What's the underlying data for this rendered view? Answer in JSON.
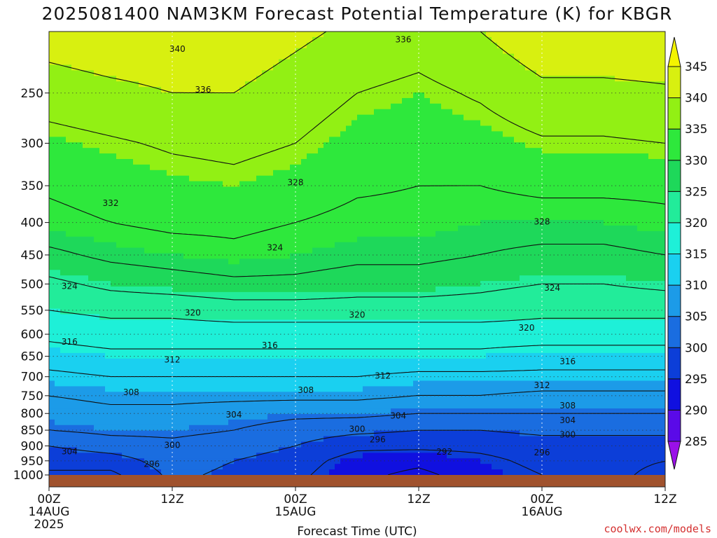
{
  "chart_data": {
    "type": "contour",
    "title": "2025081400 NAM3KM Forecast Potential Temperature (K) for KBGR",
    "xlabel": "Forecast Time (UTC)",
    "ylabel": "",
    "credit": "coolwx.com/models",
    "x_hours": [
      0,
      12,
      24,
      36,
      48,
      60
    ],
    "x_ticks": [
      {
        "hour": 0,
        "label": "00Z",
        "date": "14AUG",
        "year": "2025"
      },
      {
        "hour": 12,
        "label": "12Z",
        "date": "",
        "year": ""
      },
      {
        "hour": 24,
        "label": "00Z",
        "date": "15AUG",
        "year": ""
      },
      {
        "hour": 36,
        "label": "12Z",
        "date": "",
        "year": ""
      },
      {
        "hour": 48,
        "label": "00Z",
        "date": "16AUG",
        "year": ""
      },
      {
        "hour": 60,
        "label": "12Z",
        "date": "",
        "year": ""
      }
    ],
    "x_range_hours": [
      0,
      60
    ],
    "y_scale": "log-pressure",
    "y_range_hPa": [
      1000,
      200
    ],
    "y_ticks_hPa": [
      250,
      300,
      350,
      400,
      450,
      500,
      550,
      600,
      650,
      700,
      750,
      800,
      850,
      900,
      950,
      1000
    ],
    "grid": true,
    "colorbar": {
      "levels": [
        285,
        290,
        295,
        300,
        305,
        310,
        315,
        320,
        325,
        330,
        335,
        340,
        345
      ],
      "colors": [
        "#9a10e8",
        "#5a0ae8",
        "#1010e0",
        "#0c3ed8",
        "#1a6de0",
        "#1c9be8",
        "#1ad0f0",
        "#1ef0d8",
        "#22ec9a",
        "#1ed85a",
        "#2ee83c",
        "#92f014",
        "#d8f010",
        "#f4f400"
      ]
    },
    "ground_color": "#a0522d",
    "contour_interval_K": 4,
    "profiles_pressure_hPa": [
      1000,
      950,
      900,
      850,
      800,
      750,
      700,
      650,
      600,
      550,
      500,
      450,
      400,
      350,
      300,
      250,
      200
    ],
    "profiles": [
      {
        "hour": 0,
        "theta_K": [
          295.5,
          297,
          300,
          304,
          306,
          308,
          311,
          314,
          317,
          320,
          323,
          327,
          331,
          332.5,
          334.5,
          338,
          342
        ]
      },
      {
        "hour": 6,
        "theta_K": [
          295,
          298,
          302,
          305,
          307,
          309,
          312,
          315,
          318,
          321,
          325,
          329,
          332,
          333.5,
          335.5,
          339,
          343
        ]
      },
      {
        "hour": 12,
        "theta_K": [
          301,
          302,
          303,
          305,
          307,
          309,
          312,
          315,
          318,
          321,
          326,
          330,
          333,
          334.5,
          336.5,
          340,
          343
        ]
      },
      {
        "hour": 18,
        "theta_K": [
          299,
          300,
          302,
          304,
          306,
          309,
          312,
          315,
          318,
          322,
          327,
          331,
          333,
          335,
          337,
          340,
          343
        ]
      },
      {
        "hour": 24,
        "theta_K": [
          297,
          298,
          300,
          302,
          305,
          309,
          312,
          315,
          318,
          322,
          327,
          330,
          332,
          334,
          336,
          338,
          341
        ]
      },
      {
        "hour": 30,
        "theta_K": [
          293,
          294,
          297,
          301,
          305,
          309,
          312,
          315,
          318,
          322,
          326,
          329,
          331,
          332.5,
          334,
          336,
          339
        ]
      },
      {
        "hour": 36,
        "theta_K": [
          291,
          293,
          297,
          300,
          304,
          308,
          311,
          315,
          318,
          322,
          326,
          329,
          331,
          332,
          333.5,
          335,
          338
        ]
      },
      {
        "hour": 42,
        "theta_K": [
          294,
          295,
          297,
          300,
          304,
          308,
          311,
          315,
          318,
          322,
          325,
          328,
          330,
          332,
          334,
          336.5,
          340
        ]
      },
      {
        "hour": 48,
        "theta_K": [
          296,
          297,
          298,
          301,
          304,
          307,
          311,
          314,
          318,
          321,
          324,
          327,
          330,
          333,
          335.5,
          339,
          343
        ]
      },
      {
        "hour": 54,
        "theta_K": [
          297,
          297,
          298,
          301,
          304,
          307,
          311,
          314,
          318,
          321,
          324,
          327,
          330,
          333,
          335.5,
          339,
          343
        ]
      },
      {
        "hour": 60,
        "theta_K": [
          295,
          296,
          298,
          301,
          304,
          307,
          311,
          314,
          318,
          321,
          325,
          328,
          331,
          333,
          336,
          339.5,
          343
        ]
      }
    ],
    "contour_labels": [
      {
        "text": "340",
        "hour": 12.5,
        "hPa": 213
      },
      {
        "text": "336",
        "hour": 34.5,
        "hPa": 206
      },
      {
        "text": "336",
        "hour": 15.0,
        "hPa": 247
      },
      {
        "text": "332",
        "hour": 6.0,
        "hPa": 373
      },
      {
        "text": "328",
        "hour": 24.0,
        "hPa": 346
      },
      {
        "text": "328",
        "hour": 48.0,
        "hPa": 399
      },
      {
        "text": "324",
        "hour": 22.0,
        "hPa": 438
      },
      {
        "text": "324",
        "hour": 2.0,
        "hPa": 504
      },
      {
        "text": "324",
        "hour": 49.0,
        "hPa": 507
      },
      {
        "text": "320",
        "hour": 14.0,
        "hPa": 555
      },
      {
        "text": "320",
        "hour": 30.0,
        "hPa": 559
      },
      {
        "text": "320",
        "hour": 46.5,
        "hPa": 586
      },
      {
        "text": "316",
        "hour": 2.0,
        "hPa": 617
      },
      {
        "text": "316",
        "hour": 21.5,
        "hPa": 625
      },
      {
        "text": "316",
        "hour": 50.5,
        "hPa": 662
      },
      {
        "text": "312",
        "hour": 12.0,
        "hPa": 658
      },
      {
        "text": "312",
        "hour": 32.5,
        "hPa": 698
      },
      {
        "text": "312",
        "hour": 48.0,
        "hPa": 722
      },
      {
        "text": "308",
        "hour": 8.0,
        "hPa": 741
      },
      {
        "text": "308",
        "hour": 25.0,
        "hPa": 735
      },
      {
        "text": "308",
        "hour": 50.5,
        "hPa": 777
      },
      {
        "text": "304",
        "hour": 18.0,
        "hPa": 804
      },
      {
        "text": "304",
        "hour": 34.0,
        "hPa": 807
      },
      {
        "text": "304",
        "hour": 50.5,
        "hPa": 820
      },
      {
        "text": "304",
        "hour": 2.0,
        "hPa": 918
      },
      {
        "text": "300",
        "hour": 12.0,
        "hPa": 898
      },
      {
        "text": "300",
        "hour": 30.0,
        "hPa": 847
      },
      {
        "text": "300",
        "hour": 50.5,
        "hPa": 864
      },
      {
        "text": "296",
        "hour": 10.0,
        "hPa": 961
      },
      {
        "text": "296",
        "hour": 32.0,
        "hPa": 880
      },
      {
        "text": "296",
        "hour": 48.0,
        "hPa": 922
      },
      {
        "text": "292",
        "hour": 38.5,
        "hPa": 920
      }
    ]
  }
}
